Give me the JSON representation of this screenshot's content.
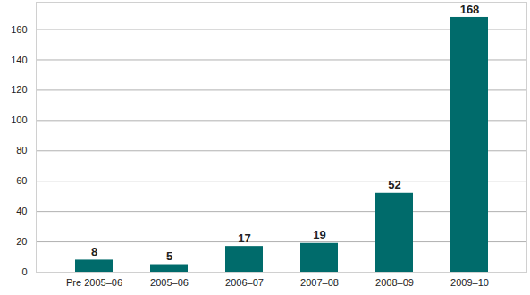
{
  "chart_data": {
    "type": "bar",
    "categories": [
      "Pre 2005–06",
      "2005–06",
      "2006–07",
      "2007–08",
      "2008–09",
      "2009–10"
    ],
    "values": [
      8,
      5,
      17,
      19,
      52,
      168
    ],
    "color": "#006b6b",
    "ylim": [
      0,
      178
    ],
    "yticks": [
      0,
      20,
      40,
      60,
      80,
      100,
      120,
      140,
      160
    ],
    "grid": true,
    "data_labels": true
  }
}
